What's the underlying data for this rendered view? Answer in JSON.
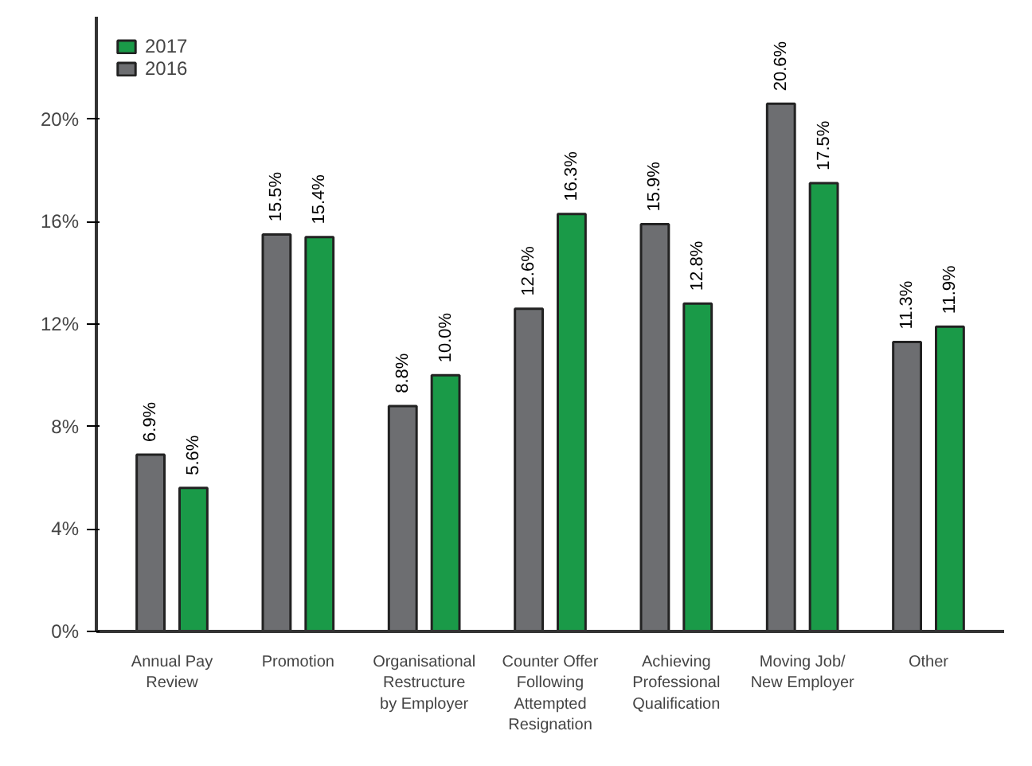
{
  "chart_data": {
    "type": "bar",
    "categories": [
      "Annual Pay\nReview",
      "Promotion",
      "Organisational\nRestructure\nby Employer",
      "Counter Offer\nFollowing\nAttempted\nResignation",
      "Achieving\nProfessional\nQualification",
      "Moving Job/\nNew Employer",
      "Other"
    ],
    "series": [
      {
        "name": "2016",
        "color": "#6d6e71",
        "values": [
          6.9,
          15.5,
          8.8,
          12.6,
          15.9,
          20.6,
          11.3
        ],
        "value_labels": [
          "6.9%",
          "15.5%",
          "8.8%",
          "12.6%",
          "15.9%",
          "20.6%",
          "11.3%"
        ]
      },
      {
        "name": "2017",
        "color": "#1a9a48",
        "values": [
          5.6,
          15.4,
          10.0,
          16.3,
          12.8,
          17.5,
          11.9
        ],
        "value_labels": [
          "5.6%",
          "15.4%",
          "10.0%",
          "16.3%",
          "12.8%",
          "17.5%",
          "11.9%"
        ]
      }
    ],
    "ylim": [
      0,
      24
    ],
    "yticks": [
      {
        "value": 0,
        "label": "0%"
      },
      {
        "value": 4,
        "label": "4%"
      },
      {
        "value": 8,
        "label": "8%"
      },
      {
        "value": 12,
        "label": "12%"
      },
      {
        "value": 16,
        "label": "16%"
      },
      {
        "value": 20,
        "label": "20%"
      }
    ],
    "grid": false,
    "legend": "top left"
  }
}
